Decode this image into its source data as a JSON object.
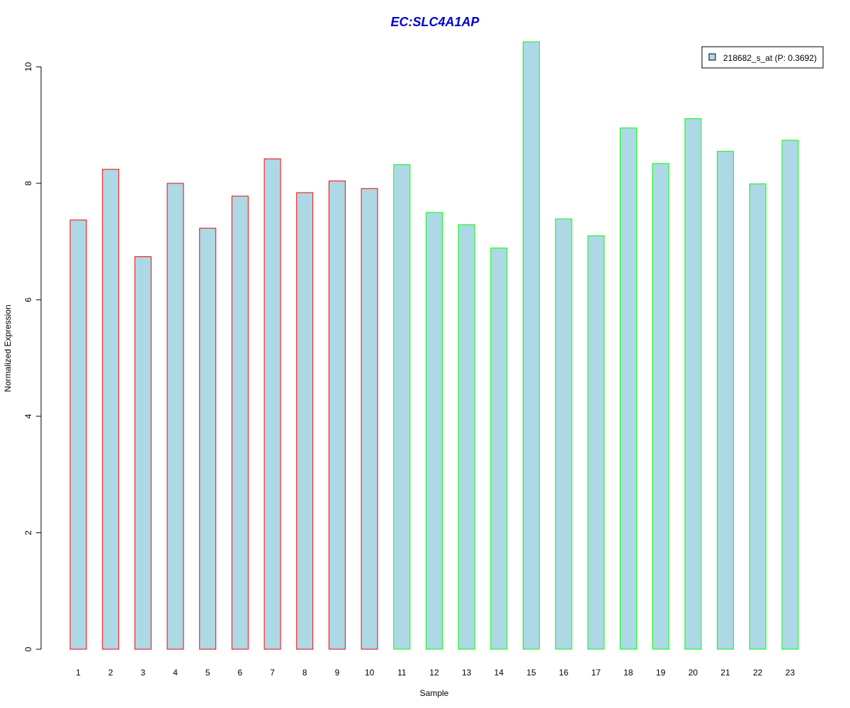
{
  "chart_data": {
    "type": "bar",
    "title": "EC:SLC4A1AP",
    "xlabel": "Sample",
    "ylabel": "Normalized Expression",
    "categories": [
      "1",
      "2",
      "3",
      "4",
      "5",
      "6",
      "7",
      "8",
      "9",
      "10",
      "11",
      "12",
      "13",
      "14",
      "15",
      "16",
      "17",
      "18",
      "19",
      "20",
      "21",
      "22",
      "23"
    ],
    "series": [
      {
        "name": "218682_s_at (P: 0.3692)",
        "values": [
          7.37,
          8.24,
          6.74,
          8.0,
          7.23,
          7.78,
          8.42,
          7.84,
          8.04,
          7.91,
          8.32,
          7.5,
          7.29,
          6.89,
          10.43,
          7.39,
          7.1,
          8.95,
          8.34,
          9.11,
          8.55,
          7.99,
          8.74
        ]
      }
    ],
    "ylim": [
      0,
      10.43
    ],
    "yticks": [
      "0",
      "2",
      "4",
      "6",
      "8",
      "10"
    ],
    "legend_position": "top-right",
    "grid": false
  },
  "colors": {
    "bar_fill": "#add8e6",
    "border_group1": "#ff0000",
    "border_group2": "#00ff00",
    "title": "#0000cd",
    "axis": "#000000"
  },
  "groups": [
    1,
    1,
    1,
    1,
    1,
    1,
    1,
    1,
    1,
    1,
    2,
    2,
    2,
    2,
    2,
    2,
    2,
    2,
    2,
    2,
    2,
    2,
    2
  ]
}
